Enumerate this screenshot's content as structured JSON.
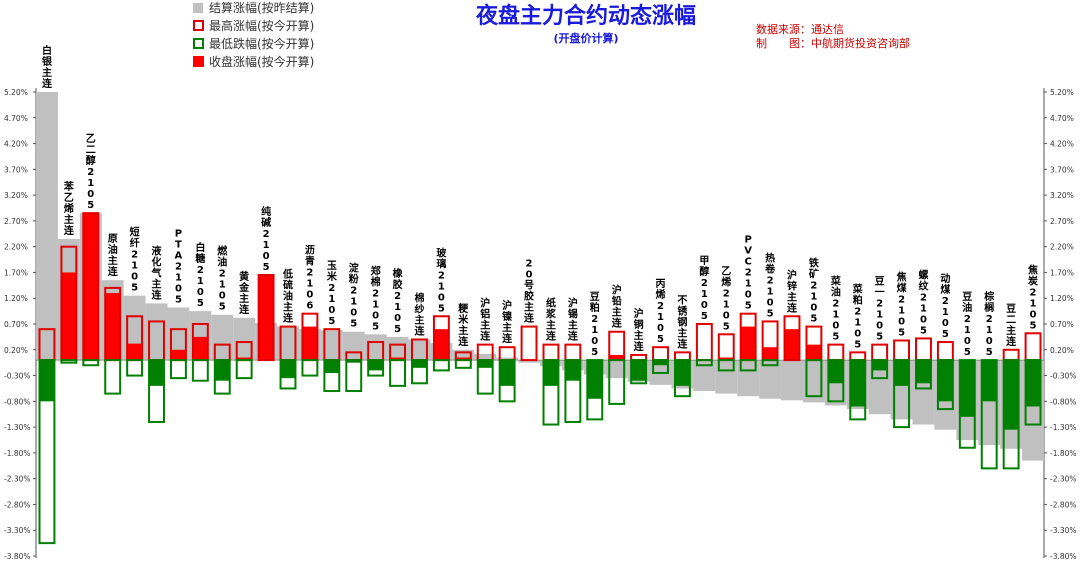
{
  "header": {
    "title": "夜盘主力合约动态涨幅",
    "subtitle": "(开盘价计算)",
    "source": "数据来源：通达信",
    "maker": "制　　图：中航期货投资咨询部"
  },
  "colors": {
    "settle": "#c0c0c0",
    "high_outline": "#e00000",
    "low_outline": "#008000",
    "close_up": "#ff0000",
    "close_down": "#008000",
    "title": "#1a1adb",
    "source": "#cc0000"
  },
  "chart_data": {
    "type": "bar",
    "ylim": [
      -3.8,
      5.2
    ],
    "yticks": [
      "5.20%",
      "4.70%",
      "4.20%",
      "3.70%",
      "3.20%",
      "2.70%",
      "2.20%",
      "1.70%",
      "1.20%",
      "0.70%",
      "0.20%",
      "-0.30%",
      "-0.80%",
      "-1.30%",
      "-1.80%",
      "-2.30%",
      "-2.80%",
      "-3.30%",
      "-3.80%"
    ],
    "legend": {
      "position": "top-left",
      "entries": [
        "结算涨幅(按昨结算)",
        "最高涨幅(按今开算)",
        "最低跌幅(按今开算)",
        "收盘涨幅(按今开算)"
      ]
    },
    "categories": [
      "白银主连",
      "苯乙烯主连",
      "乙二醇2105",
      "原油主连",
      "短纤2105",
      "液化气主连",
      "PTA2105",
      "白糖2105",
      "燃油2105",
      "黄金主连",
      "纯碱2105",
      "低硫油主连",
      "沥青2106",
      "玉米2105",
      "淀粉2105",
      "郑棉2105",
      "橡胶2105",
      "棉纱主连",
      "玻璃2105",
      "粳米主连",
      "沪铝主连",
      "沪镍主连",
      "20号胶主连",
      "纸浆主连",
      "沪锡主连",
      "豆粕2105",
      "沪铅主连",
      "沪铜主连",
      "丙烯2105",
      "不锈钢主连",
      "甲醇2105",
      "乙烯2105",
      "PVC2105",
      "热卷2105",
      "沪锌主连",
      "铁矿2105",
      "菜油2105",
      "菜粕2105",
      "豆一2105",
      "焦煤2105",
      "螺纹2105",
      "动煤2105",
      "豆油2105",
      "棕榈2105",
      "豆二主连",
      "焦炭2105"
    ],
    "series": [
      {
        "name": "结算涨幅(按昨结算)",
        "values": [
          5.2,
          2.35,
          2.85,
          1.55,
          1.25,
          1.1,
          1.02,
          0.95,
          0.88,
          0.82,
          0.72,
          0.65,
          0.6,
          0.58,
          0.55,
          0.5,
          0.45,
          0.4,
          0.33,
          0.2,
          0.12,
          0.05,
          -0.05,
          -0.12,
          -0.2,
          -0.28,
          -0.35,
          -0.42,
          -0.48,
          -0.55,
          -0.6,
          -0.65,
          -0.7,
          -0.75,
          -0.78,
          -0.82,
          -0.88,
          -0.95,
          -1.05,
          -1.15,
          -1.25,
          -1.35,
          -1.55,
          -1.65,
          -1.72,
          -1.95
        ]
      },
      {
        "name": "最高涨幅(按今开算)",
        "values": [
          0.6,
          2.2,
          2.85,
          1.4,
          0.85,
          0.75,
          0.6,
          0.7,
          0.3,
          0.35,
          1.65,
          0.65,
          0.9,
          0.6,
          0.15,
          0.35,
          0.3,
          0.4,
          0.85,
          0.15,
          0.3,
          0.25,
          0.65,
          0.3,
          0.3,
          0.0,
          0.55,
          0.1,
          0.25,
          0.15,
          0.7,
          0.5,
          0.9,
          0.75,
          0.85,
          0.65,
          0.3,
          0.15,
          0.3,
          0.38,
          0.42,
          0.35,
          0.0,
          0.0,
          0.2,
          0.52
        ]
      },
      {
        "name": "最低跌幅(按今开算)",
        "values": [
          -3.55,
          -0.05,
          -0.1,
          -0.65,
          -0.3,
          -1.2,
          -0.35,
          -0.4,
          -0.65,
          -0.35,
          0.0,
          -0.55,
          -0.3,
          -0.6,
          -0.6,
          -0.3,
          -0.5,
          -0.45,
          -0.2,
          -0.15,
          -0.65,
          -0.8,
          0.0,
          -1.25,
          -1.2,
          -1.15,
          -0.85,
          -0.45,
          -0.25,
          -0.7,
          -0.1,
          -0.2,
          -0.2,
          -0.1,
          0.0,
          -0.7,
          -0.8,
          -1.15,
          -0.35,
          -1.3,
          -0.55,
          -0.95,
          -1.7,
          -2.1,
          -2.1,
          -1.25
        ]
      },
      {
        "name": "收盘涨幅(按今开算)",
        "values": [
          -0.8,
          1.7,
          2.85,
          1.3,
          0.32,
          -0.5,
          0.2,
          0.45,
          -0.4,
          0.05,
          1.65,
          -0.35,
          0.65,
          -0.25,
          -0.05,
          -0.2,
          0.05,
          -0.15,
          0.6,
          0.05,
          -0.15,
          -0.5,
          0.0,
          -0.5,
          -0.4,
          -0.75,
          0.1,
          -0.4,
          -0.1,
          -0.5,
          0.0,
          0.05,
          0.65,
          0.25,
          0.6,
          0.3,
          -0.45,
          -0.9,
          -0.2,
          -0.5,
          -0.45,
          -0.8,
          -1.1,
          -0.8,
          -1.35,
          -0.9
        ]
      }
    ]
  }
}
